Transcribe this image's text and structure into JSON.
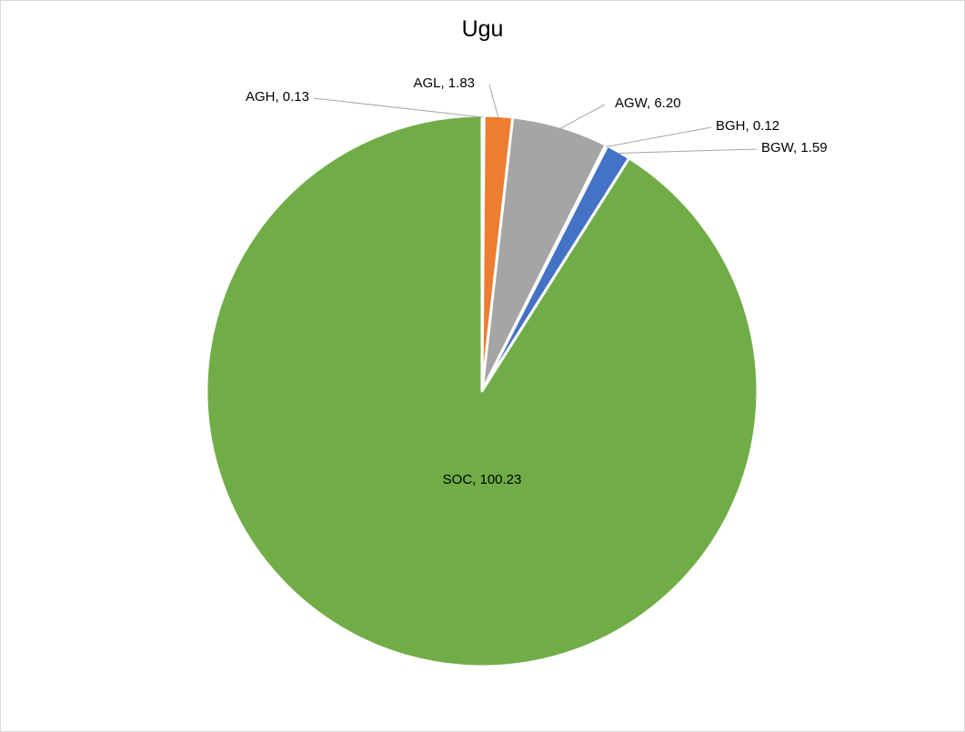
{
  "chart_data": {
    "type": "pie",
    "title": "Ugu",
    "slices": [
      {
        "name": "AGH",
        "value": 0.13,
        "label": "AGH, 0.13",
        "color": "#4472c4"
      },
      {
        "name": "AGL",
        "value": 1.83,
        "label": "AGL, 1.83",
        "color": "#ed7d31"
      },
      {
        "name": "AGW",
        "value": 6.2,
        "label": "AGW, 6.20",
        "color": "#a5a5a5"
      },
      {
        "name": "BGH",
        "value": 0.12,
        "label": "BGH, 0.12",
        "color": "#ffc000"
      },
      {
        "name": "BGW",
        "value": 1.59,
        "label": "BGW, 1.59",
        "color": "#4472c4"
      },
      {
        "name": "SOC",
        "value": 100.23,
        "label": "SOC, 100.23",
        "color": "#70ad47"
      }
    ],
    "start_angle_deg": 0,
    "direction": "clockwise",
    "legend": "none"
  }
}
